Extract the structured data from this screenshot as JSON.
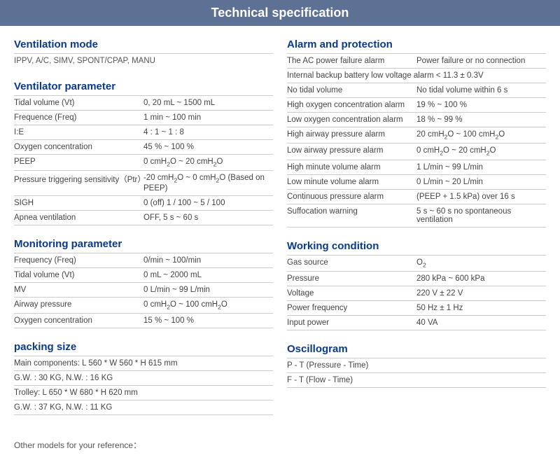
{
  "title": "Technical specification",
  "colors": {
    "titlebar_bg": "#5d7195",
    "heading_text": "#0a3a8c",
    "border": "#cccccc",
    "body_text": "#444444"
  },
  "left": {
    "ventilation_mode": {
      "heading": "Ventilation mode",
      "desc": "IPPV, A/C, SIMV, SPONT/CPAP, MANU"
    },
    "ventilator_parameter": {
      "heading": "Ventilator parameter",
      "rows": [
        {
          "label": "Tidal volume (Vt)",
          "value": "0, 20 mL ~ 1500 mL"
        },
        {
          "label": "Frequence (Freq)",
          "value": "1 min ~ 100 min"
        },
        {
          "label": "I:E",
          "value": "4 : 1 ~ 1 : 8"
        },
        {
          "label": "Oxygen concentration",
          "value": "45 % ~ 100 %"
        },
        {
          "label": "PEEP",
          "value": "0 cmH₂O ~ 20 cmH₂O"
        },
        {
          "label": "Pressure triggering sensitivity（Ptr）",
          "value": "-20 cmH₂O ~ 0 cmH₂O (Based on PEEP)"
        },
        {
          "label": "SIGH",
          "value": "0 (off) 1 / 100 ~ 5 / 100"
        },
        {
          "label": "Apnea ventilation",
          "value": "OFF, 5 s ~ 60 s"
        }
      ]
    },
    "monitoring_parameter": {
      "heading": "Monitoring parameter",
      "rows": [
        {
          "label": "Frequency (Freq)",
          "value": "0/min ~ 100/min"
        },
        {
          "label": "Tidal volume (Vt)",
          "value": "0 mL ~ 2000 mL"
        },
        {
          "label": "MV",
          "value": "0 L/min ~ 99 L/min"
        },
        {
          "label": "Airway pressure",
          "value": "0 cmH₂O ~ 100 cmH₂O"
        },
        {
          "label": "Oxygen concentration",
          "value": "15 % ~ 100 %"
        }
      ]
    },
    "packing_size": {
      "heading": "packing size",
      "lines": [
        "Main components: L 560 * W 560 * H 615 mm",
        "G.W. : 30 KG, N.W. : 16 KG",
        "Trolley: L 650 * W 680 * H 620 mm",
        "G.W. : 37 KG, N.W. : 11 KG"
      ]
    }
  },
  "right": {
    "alarm_and_protection": {
      "heading": "Alarm and protection",
      "rows": [
        {
          "label": "The AC power failure alarm",
          "value": "Power failure or no connection"
        },
        {
          "label": "Internal backup battery low voltage alarm < 11.3 ± 0.3V",
          "value": ""
        },
        {
          "label": "No tidal volume",
          "value": "No tidal volume within 6 s"
        },
        {
          "label": "High oxygen concentration alarm",
          "value": "19 % ~ 100 %"
        },
        {
          "label": "Low oxygen concentration alarm",
          "value": "18 % ~ 99 %"
        },
        {
          "label": "High airway pressure alarm",
          "value": "20 cmH₂O ~ 100 cmH₂O"
        },
        {
          "label": "Low airway pressure alarm",
          "value": "0 cmH₂O ~ 20 cmH₂O"
        },
        {
          "label": "High minute volume alarm",
          "value": "1 L/min ~ 99 L/min"
        },
        {
          "label": "Low minute volume alarm",
          "value": "0 L/min ~ 20 L/min"
        },
        {
          "label": "Continuous pressure alarm",
          "value": "(PEEP + 1.5 kPa) over 16 s"
        },
        {
          "label": "Suffocation warning",
          "value": "5 s ~ 60 s no spontaneous ventilation"
        }
      ]
    },
    "working_condition": {
      "heading": "Working condition",
      "rows": [
        {
          "label": "Gas source",
          "value": "O₂"
        },
        {
          "label": "Pressure",
          "value": "280 kPa ~ 600 kPa"
        },
        {
          "label": "Voltage",
          "value": "220 V ± 22 V"
        },
        {
          "label": "Power frequency",
          "value": "50 Hz ± 1 Hz"
        },
        {
          "label": "Input power",
          "value": "40 VA"
        }
      ]
    },
    "oscillogram": {
      "heading": "Oscillogram",
      "lines": [
        "P - T (Pressure - Time)",
        "F - T (Flow - Time)"
      ]
    }
  },
  "footer_note": "Other models for your reference："
}
